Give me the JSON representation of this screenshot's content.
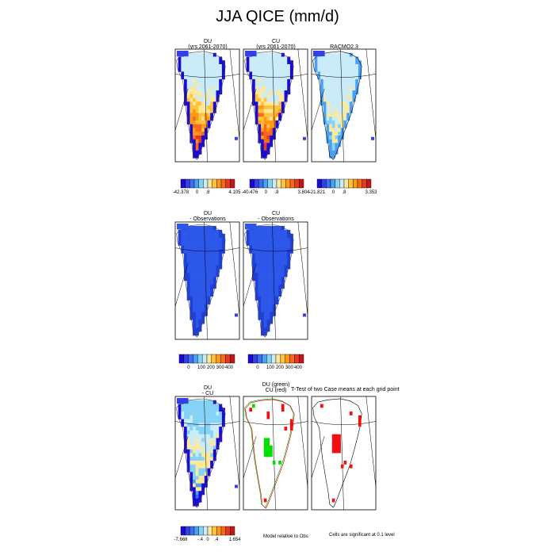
{
  "title": "JJA QICE (mm/d)",
  "colors": {
    "scale": [
      "#1a0bd4",
      "#3240e6",
      "#3d6ff0",
      "#4aa0f2",
      "#84d3f7",
      "#c9ecf8",
      "#ffe89a",
      "#ffc23a",
      "#ff9812",
      "#f8691a",
      "#e53a1f",
      "#c21619"
    ],
    "obs_main": "#2c57e9",
    "obs_dark": "#1f3fd6",
    "sig_green": "#00e000",
    "sig_red": "#f01010",
    "coast_green": "#00a000",
    "coast_red": "#d00000"
  },
  "panels": {
    "r1_du_line1": "DU",
    "r1_du_line2": "(yrs 2061-2070)",
    "r1_cu_line1": "CU",
    "r1_cu_line2": "(yrs 2061-2070)",
    "r1_racmo": "RACMO2.3",
    "r2_du_line1": "DU",
    "r2_du_line2": "- Observations",
    "r2_cu_line1": "CU",
    "r2_cu_line2": "- Observations",
    "r3_diff_line1": "DU",
    "r3_diff_line2": "- CU",
    "r3_ttest_line1": "DU (green)",
    "r3_ttest_line2": "CU (red)",
    "r3_ttest_title": "T-Test of two Case means at each grid point"
  },
  "notes": {
    "model_relative": "Model relative to Obs",
    "significance": "Cells are significant at 0.1 level"
  },
  "chart_data": [
    {
      "type": "heatmap",
      "panel": "DU (yrs 2061-2070)",
      "colorbar": {
        "min": "-42.378",
        "ticks": [
          "0",
          ".8"
        ],
        "max": "4.105"
      }
    },
    {
      "type": "heatmap",
      "panel": "CU (yrs 2061-2070)",
      "colorbar": {
        "min": "-40.476",
        "ticks": [
          "0",
          ".8"
        ],
        "max": "3.804"
      }
    },
    {
      "type": "heatmap",
      "panel": "RACMO2.3",
      "colorbar": {
        "min": "-21.821",
        "ticks": [
          "0",
          ".8"
        ],
        "max": "3.353"
      }
    },
    {
      "type": "heatmap",
      "panel": "DU - Observations",
      "colorbar": {
        "ticks": [
          "0",
          "100",
          "200",
          "300",
          "400"
        ]
      }
    },
    {
      "type": "heatmap",
      "panel": "CU - Observations",
      "colorbar": {
        "ticks": [
          "0",
          "100",
          "200",
          "300",
          "400"
        ]
      }
    },
    {
      "type": "heatmap",
      "panel": "DU - CU",
      "colorbar": {
        "min": "-7.668",
        "ticks": [
          "-.4",
          "0",
          ".4"
        ],
        "max": "1.654"
      }
    },
    {
      "type": "heatmap",
      "panel": "T-Test DU (green)",
      "significant": "green cells"
    },
    {
      "type": "heatmap",
      "panel": "T-Test CU (red)",
      "significant": "red cells"
    }
  ]
}
